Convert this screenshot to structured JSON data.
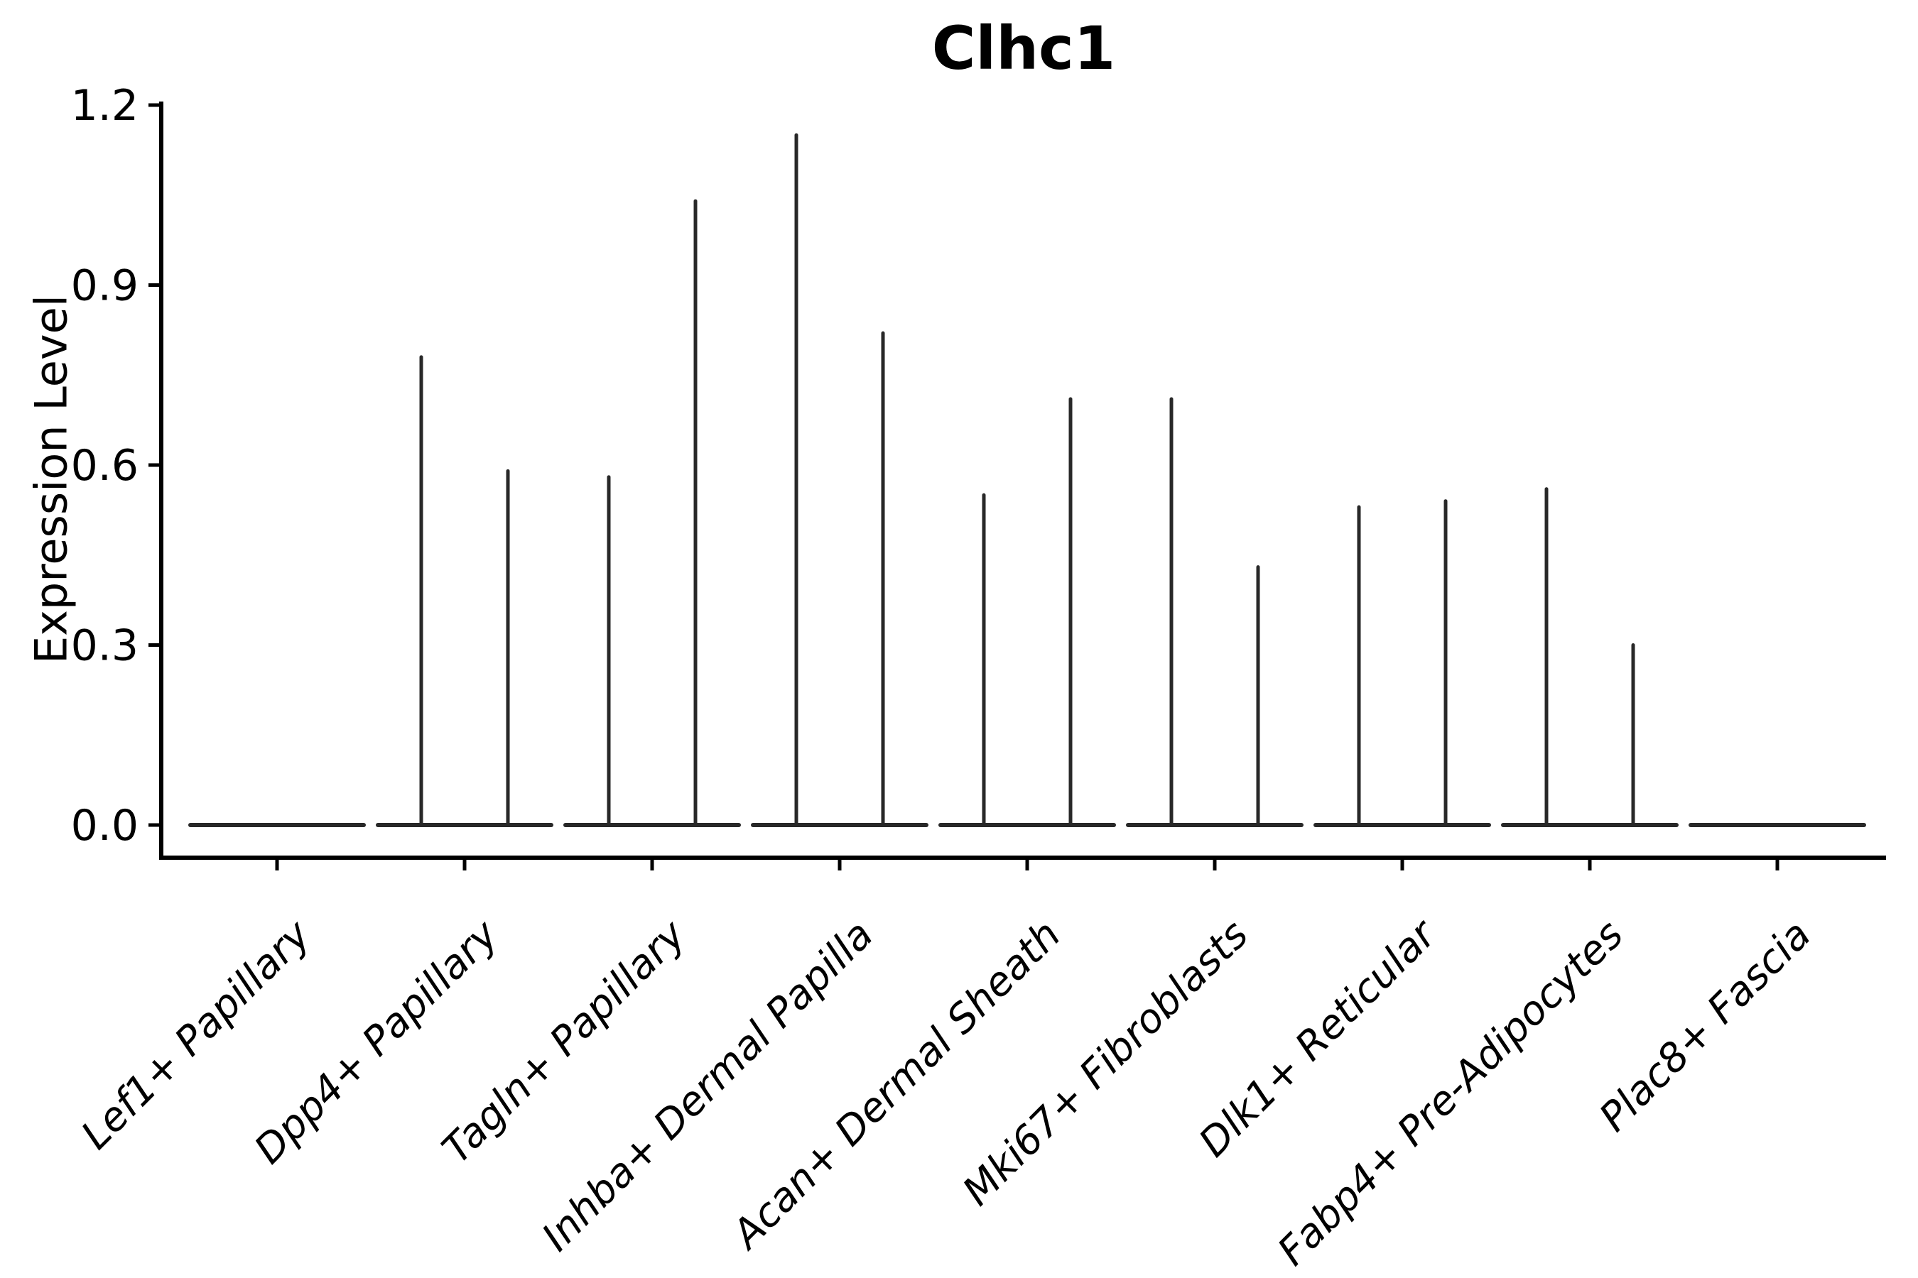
{
  "figure": {
    "background_color": "#ffffff"
  },
  "chart_data": {
    "type": "violin",
    "title": "Clhc1",
    "ylabel": "Expression Level",
    "xlabel": "",
    "ylim": [
      0,
      1.2
    ],
    "ytick_labels": [
      "0.0",
      "0.3",
      "0.6",
      "0.9",
      "1.2"
    ],
    "grid": false,
    "legend_position": "none",
    "categories": [
      "Lef1+ Papillary",
      "Dpp4+ Papillary",
      "Tagln+ Papillary",
      "Inhba+ Dermal Papilla",
      "Acan+ Dermal Sheath",
      "Mki67+ Fibroblasts",
      "Dlk1+ Reticular",
      "Fabp4+ Pre-Adipocytes",
      "Plac8+ Fascia"
    ],
    "violins_per_category": 2,
    "series": [
      {
        "name": "left-violin",
        "max_values": [
          0,
          0.78,
          0.58,
          1.15,
          0.55,
          0.71,
          0.53,
          0.56,
          0
        ]
      },
      {
        "name": "right-violin",
        "max_values": [
          0,
          0.59,
          1.04,
          0.82,
          0.71,
          0.43,
          0.54,
          0.3,
          0
        ]
      }
    ],
    "distribution_note": "Each violin renders as a flat horizontal base at y=0 with a single thin spike rising to its maximum expression value; categories with max 0 show only the flat base.",
    "line_color": "#282828",
    "axis_color": "#000000"
  }
}
